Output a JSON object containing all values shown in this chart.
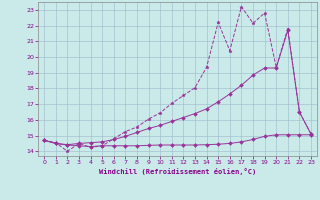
{
  "xlabel": "Windchill (Refroidissement éolien,°C)",
  "bg_color": "#caeaea",
  "grid_color": "#9ab8c8",
  "line_color": "#993399",
  "xlim_min": -0.5,
  "xlim_max": 23.5,
  "ylim_min": 13.7,
  "ylim_max": 23.5,
  "xticks": [
    0,
    1,
    2,
    3,
    4,
    5,
    6,
    7,
    8,
    9,
    10,
    11,
    12,
    13,
    14,
    15,
    16,
    17,
    18,
    19,
    20,
    21,
    22,
    23
  ],
  "yticks": [
    14,
    15,
    16,
    17,
    18,
    19,
    20,
    21,
    22,
    23
  ],
  "line1_x": [
    0,
    1,
    2,
    3,
    4,
    5,
    6,
    7,
    8,
    9,
    10,
    11,
    12,
    13,
    14,
    15,
    16,
    17,
    18,
    19,
    20,
    21,
    22,
    23
  ],
  "line1_y": [
    14.7,
    14.55,
    14.0,
    14.5,
    14.25,
    14.35,
    14.8,
    15.25,
    15.55,
    16.05,
    16.45,
    17.05,
    17.55,
    18.05,
    19.35,
    22.2,
    20.4,
    23.2,
    22.15,
    22.8,
    19.35,
    21.8,
    16.5,
    15.1
  ],
  "line2_x": [
    0,
    1,
    2,
    3,
    4,
    5,
    6,
    7,
    8,
    9,
    10,
    11,
    12,
    13,
    14,
    15,
    16,
    17,
    18,
    19,
    20,
    21,
    22,
    23
  ],
  "line2_y": [
    14.7,
    14.5,
    14.42,
    14.5,
    14.55,
    14.6,
    14.75,
    14.95,
    15.2,
    15.45,
    15.65,
    15.9,
    16.15,
    16.4,
    16.7,
    17.15,
    17.65,
    18.2,
    18.85,
    19.3,
    19.3,
    21.7,
    16.5,
    15.1
  ],
  "line3_x": [
    0,
    1,
    2,
    3,
    4,
    5,
    6,
    7,
    8,
    9,
    10,
    11,
    12,
    13,
    14,
    15,
    16,
    17,
    18,
    19,
    20,
    21,
    22,
    23
  ],
  "line3_y": [
    14.7,
    14.5,
    14.4,
    14.35,
    14.3,
    14.35,
    14.35,
    14.35,
    14.35,
    14.38,
    14.4,
    14.4,
    14.4,
    14.4,
    14.42,
    14.45,
    14.5,
    14.6,
    14.75,
    14.95,
    15.05,
    15.05,
    15.05,
    15.05
  ]
}
